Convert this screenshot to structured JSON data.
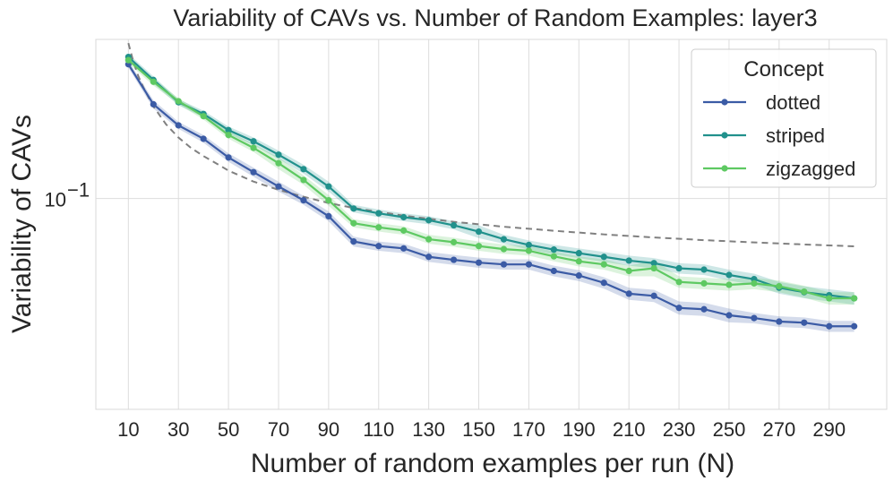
{
  "chart_data": {
    "type": "line",
    "title": "Variability of CAVs vs. Number of Random Examples: layer3",
    "xlabel": "Number of random examples per run (N)",
    "ylabel": "Variability of CAVs",
    "yscale": "log",
    "ylim": [
      0.0305,
      0.245
    ],
    "xlim": [
      -3,
      313
    ],
    "x": [
      10,
      20,
      30,
      40,
      50,
      60,
      70,
      80,
      90,
      100,
      110,
      120,
      130,
      140,
      150,
      160,
      170,
      180,
      190,
      200,
      210,
      220,
      230,
      240,
      250,
      260,
      270,
      280,
      290,
      300
    ],
    "x_ticks": [
      10,
      30,
      50,
      70,
      90,
      110,
      130,
      150,
      170,
      190,
      210,
      230,
      250,
      270,
      290
    ],
    "x_tick_labels": [
      "10",
      "30",
      "50",
      "70",
      "90",
      "110",
      "130",
      "150",
      "170",
      "190",
      "210",
      "230",
      "250",
      "270",
      "290"
    ],
    "y_ticks": [
      0.1
    ],
    "y_tick_labels": [
      {
        "base": "10",
        "exp": "−1"
      }
    ],
    "grid": true,
    "legend": {
      "title": "Concept",
      "position": "top-right"
    },
    "series": [
      {
        "name": "dotted",
        "color": "#3b5ba5",
        "values": [
          0.213,
          0.17,
          0.151,
          0.14,
          0.126,
          0.116,
          0.107,
          0.099,
          0.0905,
          0.0785,
          0.0765,
          0.0755,
          0.072,
          0.0708,
          0.0697,
          0.069,
          0.069,
          0.0665,
          0.0648,
          0.0622,
          0.0585,
          0.0578,
          0.054,
          0.0536,
          0.0518,
          0.051,
          0.05,
          0.0497,
          0.0487,
          0.0487
        ],
        "band": [
          0.004,
          0.004,
          0.003,
          0.003,
          0.003,
          0.003,
          0.003,
          0.0025,
          0.0025,
          0.0022,
          0.002,
          0.002,
          0.002,
          0.002,
          0.002,
          0.002,
          0.002,
          0.002,
          0.002,
          0.002,
          0.002,
          0.002,
          0.002,
          0.002,
          0.002,
          0.0015,
          0.0015,
          0.0015,
          0.0015,
          0.0015
        ]
      },
      {
        "name": "striped",
        "color": "#21918c",
        "values": [
          0.222,
          0.195,
          0.172,
          0.161,
          0.147,
          0.138,
          0.128,
          0.118,
          0.107,
          0.0945,
          0.092,
          0.09,
          0.0885,
          0.086,
          0.083,
          0.0795,
          0.077,
          0.075,
          0.0735,
          0.072,
          0.0705,
          0.0695,
          0.0675,
          0.067,
          0.065,
          0.0635,
          0.0605,
          0.059,
          0.058,
          0.057
        ],
        "band": [
          0.004,
          0.004,
          0.003,
          0.003,
          0.003,
          0.003,
          0.003,
          0.003,
          0.003,
          0.002,
          0.002,
          0.002,
          0.002,
          0.002,
          0.003,
          0.002,
          0.002,
          0.002,
          0.002,
          0.002,
          0.002,
          0.002,
          0.002,
          0.002,
          0.002,
          0.002,
          0.002,
          0.002,
          0.002,
          0.002
        ]
      },
      {
        "name": "zigzagged",
        "color": "#5ec962",
        "values": [
          0.218,
          0.193,
          0.173,
          0.159,
          0.143,
          0.133,
          0.122,
          0.111,
          0.099,
          0.087,
          0.085,
          0.0835,
          0.0795,
          0.0782,
          0.0765,
          0.0752,
          0.0745,
          0.0722,
          0.0702,
          0.069,
          0.0665,
          0.0675,
          0.0625,
          0.062,
          0.0615,
          0.062,
          0.061,
          0.0592,
          0.057,
          0.057
        ],
        "band": [
          0.004,
          0.004,
          0.003,
          0.003,
          0.003,
          0.003,
          0.004,
          0.003,
          0.003,
          0.002,
          0.002,
          0.002,
          0.002,
          0.002,
          0.002,
          0.002,
          0.002,
          0.002,
          0.002,
          0.002,
          0.002,
          0.003,
          0.002,
          0.002,
          0.002,
          0.002,
          0.002,
          0.002,
          0.002,
          0.002
        ]
      }
    ],
    "reference_curve": {
      "style": "dashed",
      "color": "#808080",
      "x": [
        10,
        12,
        14,
        16,
        18,
        20,
        25,
        30,
        35,
        40,
        45,
        50,
        60,
        70,
        80,
        90,
        100,
        120,
        140,
        160,
        180,
        200,
        220,
        240,
        260,
        280,
        300
      ],
      "values": [
        0.24,
        0.216,
        0.199,
        0.187,
        0.177,
        0.168,
        0.152,
        0.141,
        0.133,
        0.127,
        0.122,
        0.117,
        0.11,
        0.105,
        0.101,
        0.0975,
        0.0948,
        0.0908,
        0.0877,
        0.0853,
        0.0834,
        0.0817,
        0.0803,
        0.0791,
        0.0781,
        0.0772,
        0.0764
      ]
    }
  }
}
